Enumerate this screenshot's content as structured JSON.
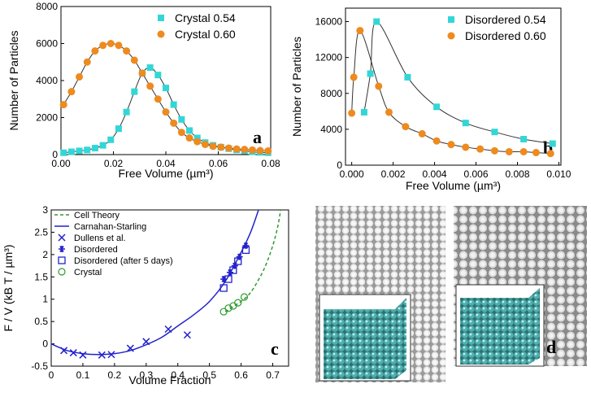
{
  "chart_data": [
    {
      "type": "scatter",
      "label": "a",
      "xlabel": "Free Volume (µm³)",
      "ylabel": "Number of Particles",
      "xlim": [
        0,
        0.08
      ],
      "ylim": [
        0,
        8000
      ],
      "xticks": [
        {
          "value": 0,
          "label": "0.00"
        },
        {
          "value": 0.02,
          "label": "0.02"
        },
        {
          "value": 0.04,
          "label": "0.04"
        },
        {
          "value": 0.06,
          "label": "0.06"
        },
        {
          "value": 0.08,
          "label": "0.08"
        }
      ],
      "yticks": [
        0,
        2000,
        4000,
        6000,
        8000
      ],
      "legend": "upper right",
      "series": [
        {
          "name": "Crystal 0.54",
          "color": "#33d6d6",
          "marker": "square",
          "fit": true,
          "x": [
            0.001,
            0.004,
            0.007,
            0.01,
            0.013,
            0.016,
            0.019,
            0.022,
            0.025,
            0.028,
            0.031,
            0.034,
            0.037,
            0.04,
            0.043,
            0.046,
            0.049,
            0.052,
            0.055,
            0.058,
            0.061,
            0.064,
            0.067,
            0.07,
            0.073,
            0.076,
            0.079
          ],
          "values": [
            100,
            150,
            200,
            250,
            350,
            500,
            800,
            1400,
            2300,
            3400,
            4400,
            4700,
            4300,
            3600,
            2700,
            1900,
            1300,
            900,
            650,
            500,
            400,
            320,
            250,
            200,
            150,
            120,
            100
          ]
        },
        {
          "name": "Crystal 0.60",
          "color": "#ee8a1e",
          "marker": "circle",
          "fit": true,
          "x": [
            0.001,
            0.004,
            0.007,
            0.01,
            0.013,
            0.016,
            0.019,
            0.022,
            0.025,
            0.028,
            0.031,
            0.034,
            0.037,
            0.04,
            0.043,
            0.046,
            0.049,
            0.052,
            0.055,
            0.058,
            0.061,
            0.064,
            0.067,
            0.07,
            0.073,
            0.076,
            0.079
          ],
          "values": [
            2700,
            3400,
            4200,
            5000,
            5600,
            5900,
            6000,
            5900,
            5600,
            5100,
            4400,
            3700,
            3000,
            2300,
            1700,
            1200,
            900,
            700,
            550,
            450,
            400,
            350,
            300,
            280,
            250,
            220,
            200
          ]
        }
      ]
    },
    {
      "type": "scatter",
      "label": "b",
      "xlabel": "Free Volume (µm³)",
      "ylabel": "Number of Particles",
      "xlim": [
        -0.0003,
        0.0101
      ],
      "ylim": [
        0,
        17500
      ],
      "xticks": [
        {
          "value": 0,
          "label": "0.000"
        },
        {
          "value": 0.002,
          "label": "0.002"
        },
        {
          "value": 0.004,
          "label": "0.004"
        },
        {
          "value": 0.006,
          "label": "0.006"
        },
        {
          "value": 0.008,
          "label": "0.008"
        },
        {
          "value": 0.01,
          "label": "0.010"
        }
      ],
      "yticks": [
        0,
        4000,
        8000,
        12000,
        16000
      ],
      "legend": "upper right",
      "series": [
        {
          "name": "Disordered 0.54",
          "color": "#33d6d6",
          "marker": "square",
          "fit": true,
          "x": [
            0.0006,
            0.0009,
            0.0012,
            0.0027,
            0.0041,
            0.0055,
            0.0069,
            0.0083,
            0.0097
          ],
          "values": [
            5900,
            10200,
            16000,
            9800,
            6500,
            4700,
            3700,
            2900,
            2400
          ]
        },
        {
          "name": "Disordered 0.60",
          "color": "#ee8a1e",
          "marker": "circle",
          "fit": true,
          "x": [
            0.0,
            0.0001,
            0.0004,
            0.0013,
            0.0018,
            0.0026,
            0.0034,
            0.0041,
            0.0048,
            0.0055,
            0.0062,
            0.0069,
            0.0076,
            0.0083,
            0.0089,
            0.0096
          ],
          "values": [
            5800,
            9800,
            15000,
            8800,
            5900,
            4300,
            3500,
            2700,
            2300,
            2000,
            1800,
            1600,
            1500,
            1500,
            1400,
            1300
          ]
        }
      ]
    },
    {
      "type": "scatter",
      "label": "c",
      "xlabel": "Volume Fraction",
      "ylabel": "F / V (kB T / µm³)",
      "xlim": [
        0,
        0.75
      ],
      "ylim": [
        -0.5,
        3
      ],
      "xticks": [
        0,
        0.1,
        0.2,
        0.3,
        0.4,
        0.5,
        0.6,
        0.7
      ],
      "yticks": [
        -0.5,
        0,
        0.5,
        1,
        1.5,
        2,
        2.5,
        3
      ],
      "legend": "upper left",
      "series": [
        {
          "name": "Cell Theory",
          "color": "#2e9a2e",
          "marker": "dashed-line",
          "x": [
            0.55,
            0.6,
            0.63,
            0.66,
            0.68,
            0.7,
            0.715,
            0.725
          ],
          "values": [
            0.72,
            0.95,
            1.15,
            1.5,
            1.8,
            2.2,
            2.6,
            3.0
          ]
        },
        {
          "name": "Carnahan-Starling",
          "color": "#2222cc",
          "marker": "line",
          "x": [
            0,
            0.05,
            0.1,
            0.15,
            0.2,
            0.25,
            0.3,
            0.35,
            0.4,
            0.45,
            0.5,
            0.55,
            0.6,
            0.63,
            0.655
          ],
          "values": [
            0,
            -0.15,
            -0.22,
            -0.24,
            -0.22,
            -0.15,
            -0.02,
            0.15,
            0.4,
            0.65,
            0.95,
            1.4,
            2.05,
            2.5,
            3.0
          ]
        },
        {
          "name": "Dullens et al.",
          "color": "#2222cc",
          "marker": "x",
          "x": [
            0.04,
            0.07,
            0.1,
            0.16,
            0.19,
            0.25,
            0.3,
            0.37,
            0.43
          ],
          "values": [
            -0.15,
            -0.2,
            -0.25,
            -0.25,
            -0.24,
            -0.1,
            0.05,
            0.33,
            0.2
          ]
        },
        {
          "name": "Disordered",
          "color": "#2222cc",
          "marker": "asterisk",
          "x": [
            0.545,
            0.565,
            0.58,
            0.595,
            0.615
          ],
          "values": [
            1.45,
            1.6,
            1.75,
            1.95,
            2.2
          ]
        },
        {
          "name": "Disordered (after 5 days)",
          "color": "#2222cc",
          "marker": "open-square",
          "x": [
            0.545,
            0.56,
            0.575,
            0.59,
            0.615
          ],
          "values": [
            1.25,
            1.45,
            1.65,
            1.85,
            2.1
          ]
        },
        {
          "name": "Crystal",
          "color": "#2e9a2e",
          "marker": "open-circle",
          "x": [
            0.545,
            0.56,
            0.575,
            0.59,
            0.61
          ],
          "values": [
            0.72,
            0.8,
            0.85,
            0.92,
            1.05
          ]
        }
      ]
    }
  ],
  "panel_d_label": "d"
}
